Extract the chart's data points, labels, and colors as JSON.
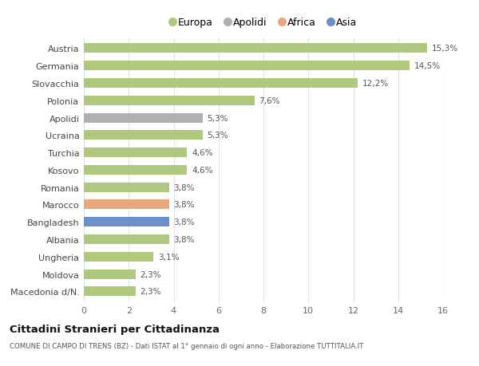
{
  "categories": [
    "Macedonia d/N.",
    "Moldova",
    "Ungheria",
    "Albania",
    "Bangladesh",
    "Marocco",
    "Romania",
    "Kosovo",
    "Turchia",
    "Ucraina",
    "Apolidi",
    "Polonia",
    "Slovacchia",
    "Germania",
    "Austria"
  ],
  "values": [
    2.3,
    2.3,
    3.1,
    3.8,
    3.8,
    3.8,
    3.8,
    4.6,
    4.6,
    5.3,
    5.3,
    7.6,
    12.2,
    14.5,
    15.3
  ],
  "labels": [
    "2,3%",
    "2,3%",
    "3,1%",
    "3,8%",
    "3,8%",
    "3,8%",
    "3,8%",
    "4,6%",
    "4,6%",
    "5,3%",
    "5,3%",
    "7,6%",
    "12,2%",
    "14,5%",
    "15,3%"
  ],
  "colors": [
    "#aec97e",
    "#aec97e",
    "#aec97e",
    "#aec97e",
    "#6b8fcc",
    "#e8a87c",
    "#aec97e",
    "#aec97e",
    "#aec97e",
    "#aec97e",
    "#b0b0b0",
    "#aec97e",
    "#aec97e",
    "#aec97e",
    "#aec97e"
  ],
  "legend_labels": [
    "Europa",
    "Apolidi",
    "Africa",
    "Asia"
  ],
  "legend_colors": [
    "#aec97e",
    "#b0b0b0",
    "#e8a87c",
    "#6b8fcc"
  ],
  "title": "Cittadini Stranieri per Cittadinanza",
  "subtitle": "COMUNE DI CAMPO DI TRENS (BZ) - Dati ISTAT al 1° gennaio di ogni anno - Elaborazione TUTTITALIA.IT",
  "xlim": [
    0,
    16
  ],
  "xticks": [
    0,
    2,
    4,
    6,
    8,
    10,
    12,
    14,
    16
  ],
  "background_color": "#ffffff",
  "grid_color": "#e0e0e0"
}
